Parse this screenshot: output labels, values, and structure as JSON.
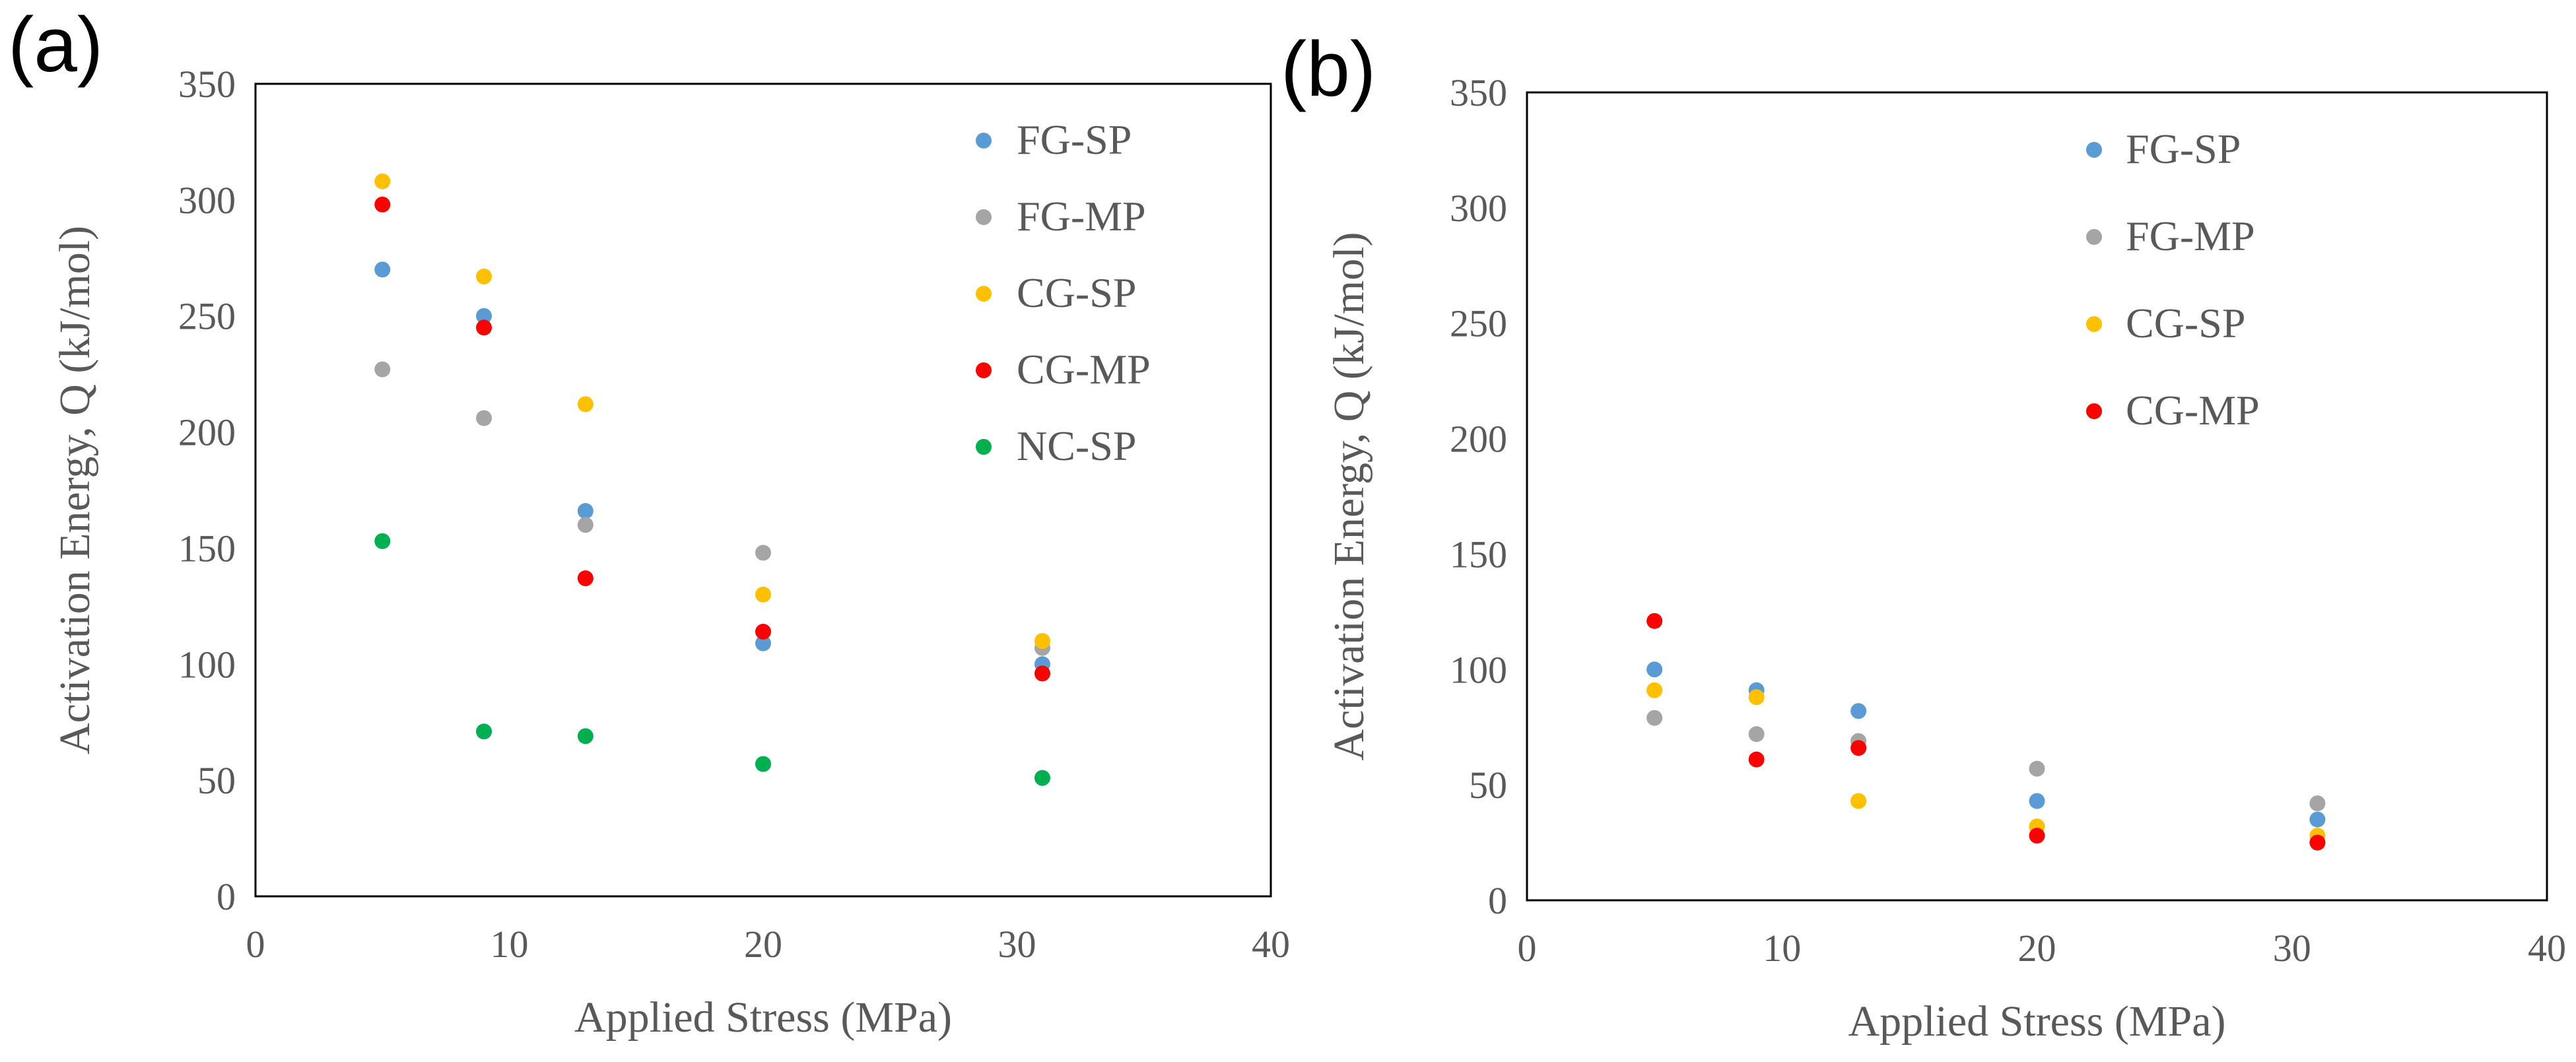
{
  "chart_data": [
    {
      "type": "scatter",
      "panel_label": "(a)",
      "xlabel": "Applied Stress (MPa)",
      "ylabel": "Activation Energy, Q (kJ/mol)",
      "xlim": [
        0,
        40
      ],
      "ylim": [
        0,
        350
      ],
      "xticks": [
        "0",
        "10",
        "20",
        "30",
        "40"
      ],
      "yticks": [
        "0",
        "50",
        "100",
        "150",
        "200",
        "250",
        "300",
        "350"
      ],
      "grid": false,
      "legend_position": "top-right",
      "series": [
        {
          "name": "FG-SP",
          "color": "#5B9BD5",
          "x": [
            5,
            9,
            13,
            20,
            31
          ],
          "y": [
            270,
            250,
            166,
            109,
            100
          ]
        },
        {
          "name": "FG-MP",
          "color": "#A5A5A5",
          "x": [
            5,
            9,
            13,
            20,
            31
          ],
          "y": [
            227,
            206,
            160,
            148,
            107
          ]
        },
        {
          "name": "CG-SP",
          "color": "#FFC000",
          "x": [
            5,
            9,
            13,
            20,
            31
          ],
          "y": [
            308,
            267,
            212,
            130,
            110
          ]
        },
        {
          "name": "CG-MP",
          "color": "#FF0000",
          "x": [
            5,
            9,
            13,
            20,
            31
          ],
          "y": [
            298,
            245,
            137,
            114,
            96
          ]
        },
        {
          "name": "NC-SP",
          "color": "#00B050",
          "x": [
            5,
            9,
            13,
            20,
            31
          ],
          "y": [
            153,
            71,
            69,
            57,
            51
          ]
        }
      ]
    },
    {
      "type": "scatter",
      "panel_label": "(b)",
      "xlabel": "Applied Stress (MPa)",
      "ylabel": "Activation Energy, Q (kJ/mol)",
      "xlim": [
        0,
        40
      ],
      "ylim": [
        0,
        350
      ],
      "xticks": [
        "0",
        "10",
        "20",
        "30",
        "40"
      ],
      "yticks": [
        "0",
        "50",
        "100",
        "150",
        "200",
        "250",
        "300",
        "350"
      ],
      "grid": false,
      "legend_position": "top-center",
      "series": [
        {
          "name": "FG-SP",
          "color": "#5B9BD5",
          "x": [
            5,
            9,
            13,
            20,
            31
          ],
          "y": [
            100,
            91,
            82,
            43,
            35
          ]
        },
        {
          "name": "FG-MP",
          "color": "#A5A5A5",
          "x": [
            5,
            9,
            13,
            20,
            31
          ],
          "y": [
            79,
            72,
            69,
            57,
            42
          ]
        },
        {
          "name": "CG-SP",
          "color": "#FFC000",
          "x": [
            5,
            9,
            13,
            20,
            31
          ],
          "y": [
            91,
            88,
            43,
            32,
            28
          ]
        },
        {
          "name": "CG-MP",
          "color": "#FF0000",
          "x": [
            5,
            9,
            13,
            20,
            31
          ],
          "y": [
            121,
            61,
            66,
            28,
            25
          ]
        }
      ]
    }
  ]
}
